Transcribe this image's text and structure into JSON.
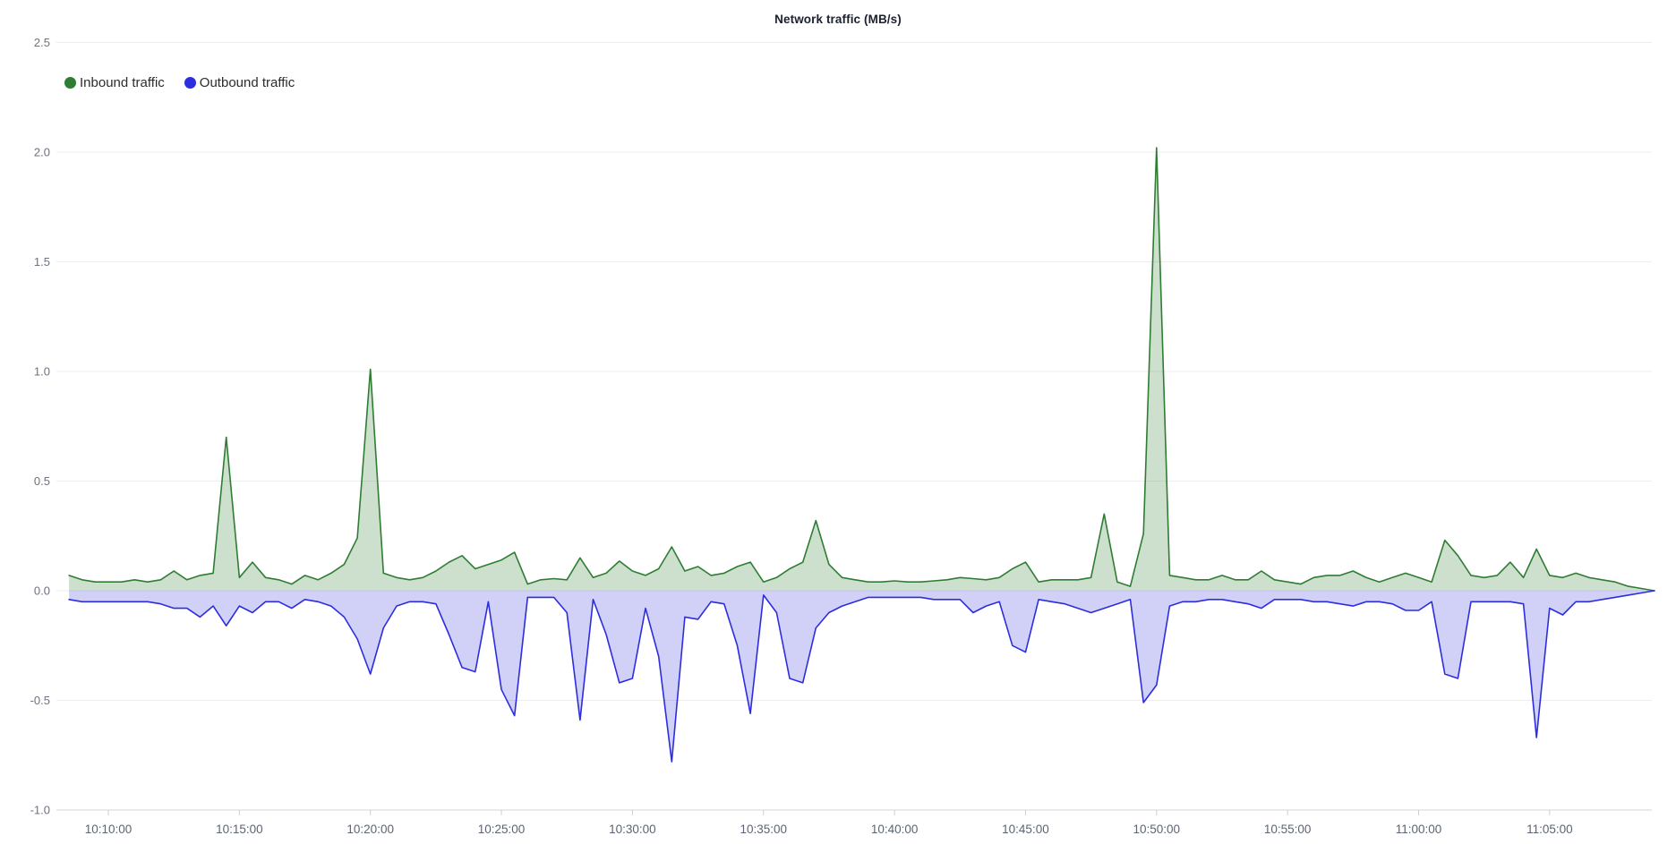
{
  "chart": {
    "title": "Network traffic (MB/s)",
    "legend": [
      {
        "label": "Inbound traffic",
        "color": "#2e7d32",
        "dot_icon": "circle"
      },
      {
        "label": "Outbound traffic",
        "color": "#2d2de0",
        "dot_icon": "circle"
      }
    ]
  },
  "chart_data": {
    "type": "area",
    "title": "Network traffic (MB/s)",
    "xlabel": "",
    "ylabel": "",
    "grid": true,
    "legend_position": "top-left",
    "ylim": [
      -1.0,
      2.5
    ],
    "yticks": [
      2.5,
      2.0,
      1.5,
      1.0,
      0.5,
      0.0,
      -0.5,
      -1.0
    ],
    "ytick_labels": [
      "2.5",
      "2.0",
      "1.5",
      "1.0",
      "0.5",
      "0.0",
      "-0.5",
      "-1.0"
    ],
    "xticks": [
      "10:10:00",
      "10:15:00",
      "10:20:00",
      "10:25:00",
      "10:30:00",
      "10:35:00",
      "10:40:00",
      "10:45:00",
      "10:50:00",
      "10:55:00",
      "11:00:00",
      "11:05:00"
    ],
    "x_range": [
      "10:08:30",
      "11:09:00"
    ],
    "sample_interval_seconds": 30,
    "x": [
      "10:08:30",
      "10:09:00",
      "10:09:30",
      "10:10:00",
      "10:10:30",
      "10:11:00",
      "10:11:30",
      "10:12:00",
      "10:12:30",
      "10:13:00",
      "10:13:30",
      "10:14:00",
      "10:14:30",
      "10:15:00",
      "10:15:30",
      "10:16:00",
      "10:16:30",
      "10:17:00",
      "10:17:30",
      "10:18:00",
      "10:18:30",
      "10:19:00",
      "10:19:30",
      "10:20:00",
      "10:20:30",
      "10:21:00",
      "10:21:30",
      "10:22:00",
      "10:22:30",
      "10:23:00",
      "10:23:30",
      "10:24:00",
      "10:24:30",
      "10:25:00",
      "10:25:30",
      "10:26:00",
      "10:26:30",
      "10:27:00",
      "10:27:30",
      "10:28:00",
      "10:28:30",
      "10:29:00",
      "10:29:30",
      "10:30:00",
      "10:30:30",
      "10:31:00",
      "10:31:30",
      "10:32:00",
      "10:32:30",
      "10:33:00",
      "10:33:30",
      "10:34:00",
      "10:34:30",
      "10:35:00",
      "10:35:30",
      "10:36:00",
      "10:36:30",
      "10:37:00",
      "10:37:30",
      "10:38:00",
      "10:38:30",
      "10:39:00",
      "10:39:30",
      "10:40:00",
      "10:40:30",
      "10:41:00",
      "10:41:30",
      "10:42:00",
      "10:42:30",
      "10:43:00",
      "10:43:30",
      "10:44:00",
      "10:44:30",
      "10:45:00",
      "10:45:30",
      "10:46:00",
      "10:46:30",
      "10:47:00",
      "10:47:30",
      "10:48:00",
      "10:48:30",
      "10:49:00",
      "10:49:30",
      "10:50:00",
      "10:50:30",
      "10:51:00",
      "10:51:30",
      "10:52:00",
      "10:52:30",
      "10:53:00",
      "10:53:30",
      "10:54:00",
      "10:54:30",
      "10:55:00",
      "10:55:30",
      "10:56:00",
      "10:56:30",
      "10:57:00",
      "10:57:30",
      "10:58:00",
      "10:58:30",
      "10:59:00",
      "10:59:30",
      "11:00:00",
      "11:00:30",
      "11:01:00",
      "11:01:30",
      "11:02:00",
      "11:02:30",
      "11:03:00",
      "11:03:30",
      "11:04:00",
      "11:04:30",
      "11:05:00",
      "11:05:30",
      "11:06:00",
      "11:06:30",
      "11:07:00",
      "11:07:30",
      "11:08:00",
      "11:08:30",
      "11:09:00"
    ],
    "series": [
      {
        "name": "Inbound traffic",
        "color": "#2e7d32",
        "fill_opacity": 0.24,
        "values": [
          0.07,
          0.05,
          0.04,
          0.04,
          0.04,
          0.05,
          0.04,
          0.05,
          0.09,
          0.05,
          0.07,
          0.08,
          0.7,
          0.06,
          0.13,
          0.06,
          0.05,
          0.03,
          0.07,
          0.05,
          0.08,
          0.12,
          0.24,
          1.01,
          0.08,
          0.06,
          0.05,
          0.06,
          0.09,
          0.13,
          0.16,
          0.1,
          0.12,
          0.14,
          0.175,
          0.03,
          0.05,
          0.055,
          0.05,
          0.15,
          0.06,
          0.08,
          0.135,
          0.09,
          0.07,
          0.1,
          0.2,
          0.09,
          0.11,
          0.07,
          0.08,
          0.11,
          0.13,
          0.04,
          0.06,
          0.1,
          0.13,
          0.32,
          0.12,
          0.06,
          0.05,
          0.04,
          0.04,
          0.045,
          0.04,
          0.04,
          0.045,
          0.05,
          0.06,
          0.055,
          0.05,
          0.06,
          0.1,
          0.13,
          0.04,
          0.05,
          0.05,
          0.05,
          0.06,
          0.35,
          0.04,
          0.02,
          0.26,
          2.02,
          0.07,
          0.06,
          0.05,
          0.05,
          0.07,
          0.05,
          0.05,
          0.09,
          0.05,
          0.04,
          0.03,
          0.06,
          0.07,
          0.07,
          0.09,
          0.06,
          0.04,
          0.06,
          0.08,
          0.06,
          0.04,
          0.23,
          0.16,
          0.07,
          0.06,
          0.07,
          0.13,
          0.06,
          0.19,
          0.07,
          0.06,
          0.08,
          0.06,
          0.05,
          0.04,
          0.02,
          0.01,
          0.0
        ]
      },
      {
        "name": "Outbound traffic",
        "color": "#2d2de0",
        "fill_opacity": 0.22,
        "values": [
          -0.04,
          -0.05,
          -0.05,
          -0.05,
          -0.05,
          -0.05,
          -0.05,
          -0.06,
          -0.08,
          -0.08,
          -0.12,
          -0.07,
          -0.16,
          -0.07,
          -0.1,
          -0.05,
          -0.05,
          -0.08,
          -0.04,
          -0.05,
          -0.07,
          -0.12,
          -0.22,
          -0.38,
          -0.17,
          -0.07,
          -0.05,
          -0.05,
          -0.06,
          -0.2,
          -0.35,
          -0.37,
          -0.05,
          -0.45,
          -0.57,
          -0.03,
          -0.03,
          -0.03,
          -0.1,
          -0.59,
          -0.04,
          -0.2,
          -0.42,
          -0.4,
          -0.08,
          -0.3,
          -0.78,
          -0.12,
          -0.13,
          -0.05,
          -0.06,
          -0.25,
          -0.56,
          -0.02,
          -0.1,
          -0.4,
          -0.42,
          -0.17,
          -0.1,
          -0.07,
          -0.05,
          -0.03,
          -0.03,
          -0.03,
          -0.03,
          -0.03,
          -0.04,
          -0.04,
          -0.04,
          -0.1,
          -0.07,
          -0.05,
          -0.25,
          -0.28,
          -0.04,
          -0.05,
          -0.06,
          -0.08,
          -0.1,
          -0.08,
          -0.06,
          -0.04,
          -0.51,
          -0.43,
          -0.07,
          -0.05,
          -0.05,
          -0.04,
          -0.04,
          -0.05,
          -0.06,
          -0.08,
          -0.04,
          -0.04,
          -0.04,
          -0.05,
          -0.05,
          -0.06,
          -0.07,
          -0.05,
          -0.05,
          -0.06,
          -0.09,
          -0.09,
          -0.05,
          -0.38,
          -0.4,
          -0.05,
          -0.05,
          -0.05,
          -0.05,
          -0.06,
          -0.67,
          -0.08,
          -0.11,
          -0.05,
          -0.05,
          -0.04,
          -0.03,
          -0.02,
          -0.01,
          0.0
        ]
      }
    ]
  }
}
